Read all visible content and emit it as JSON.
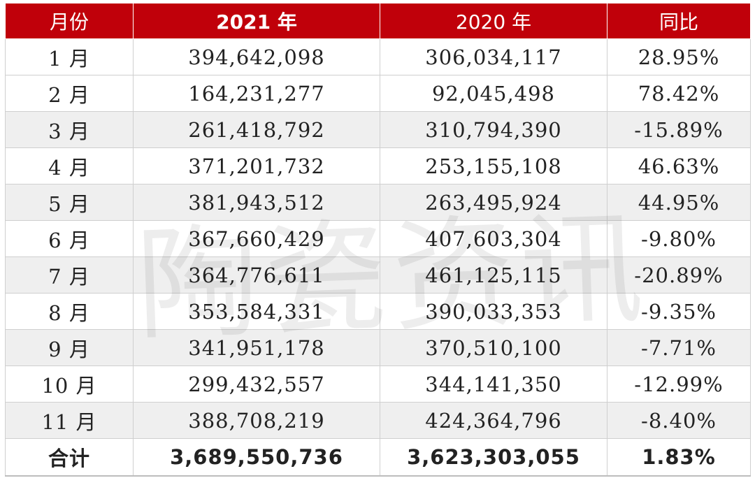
{
  "watermark": "陶瓷资讯",
  "chart_data": {
    "type": "table",
    "columns": [
      "月份",
      "2021 年",
      "2020 年",
      "同比"
    ],
    "rows": [
      {
        "month": "1 月",
        "y2021": "394,642,098",
        "y2020": "306,034,117",
        "yoy": "28.95%"
      },
      {
        "month": "2 月",
        "y2021": "164,231,277",
        "y2020": "92,045,498",
        "yoy": "78.42%"
      },
      {
        "month": "3 月",
        "y2021": "261,418,792",
        "y2020": "310,794,390",
        "yoy": "-15.89%"
      },
      {
        "month": "4 月",
        "y2021": "371,201,732",
        "y2020": "253,155,108",
        "yoy": "46.63%"
      },
      {
        "month": "5 月",
        "y2021": "381,943,512",
        "y2020": "263,495,924",
        "yoy": "44.95%"
      },
      {
        "month": "6 月",
        "y2021": "367,660,429",
        "y2020": "407,603,304",
        "yoy": "-9.80%"
      },
      {
        "month": "7 月",
        "y2021": "364,776,611",
        "y2020": "461,125,115",
        "yoy": "-20.89%"
      },
      {
        "month": "8 月",
        "y2021": "353,584,331",
        "y2020": "390,033,353",
        "yoy": "-9.35%"
      },
      {
        "month": "9 月",
        "y2021": "341,951,178",
        "y2020": "370,510,100",
        "yoy": "-7.71%"
      },
      {
        "month": "10 月",
        "y2021": "299,432,557",
        "y2020": "344,141,350",
        "yoy": "-12.99%"
      },
      {
        "month": "11 月",
        "y2021": "388,708,219",
        "y2020": "424,364,796",
        "yoy": "-8.40%"
      }
    ],
    "total": {
      "label": "合计",
      "y2021": "3,689,550,736",
      "y2020": "3,623,303,055",
      "yoy": "1.83%"
    },
    "colors": {
      "header_bg": "#c0000a",
      "header_text": "#ffffff",
      "shade_row": "#efefef"
    }
  }
}
